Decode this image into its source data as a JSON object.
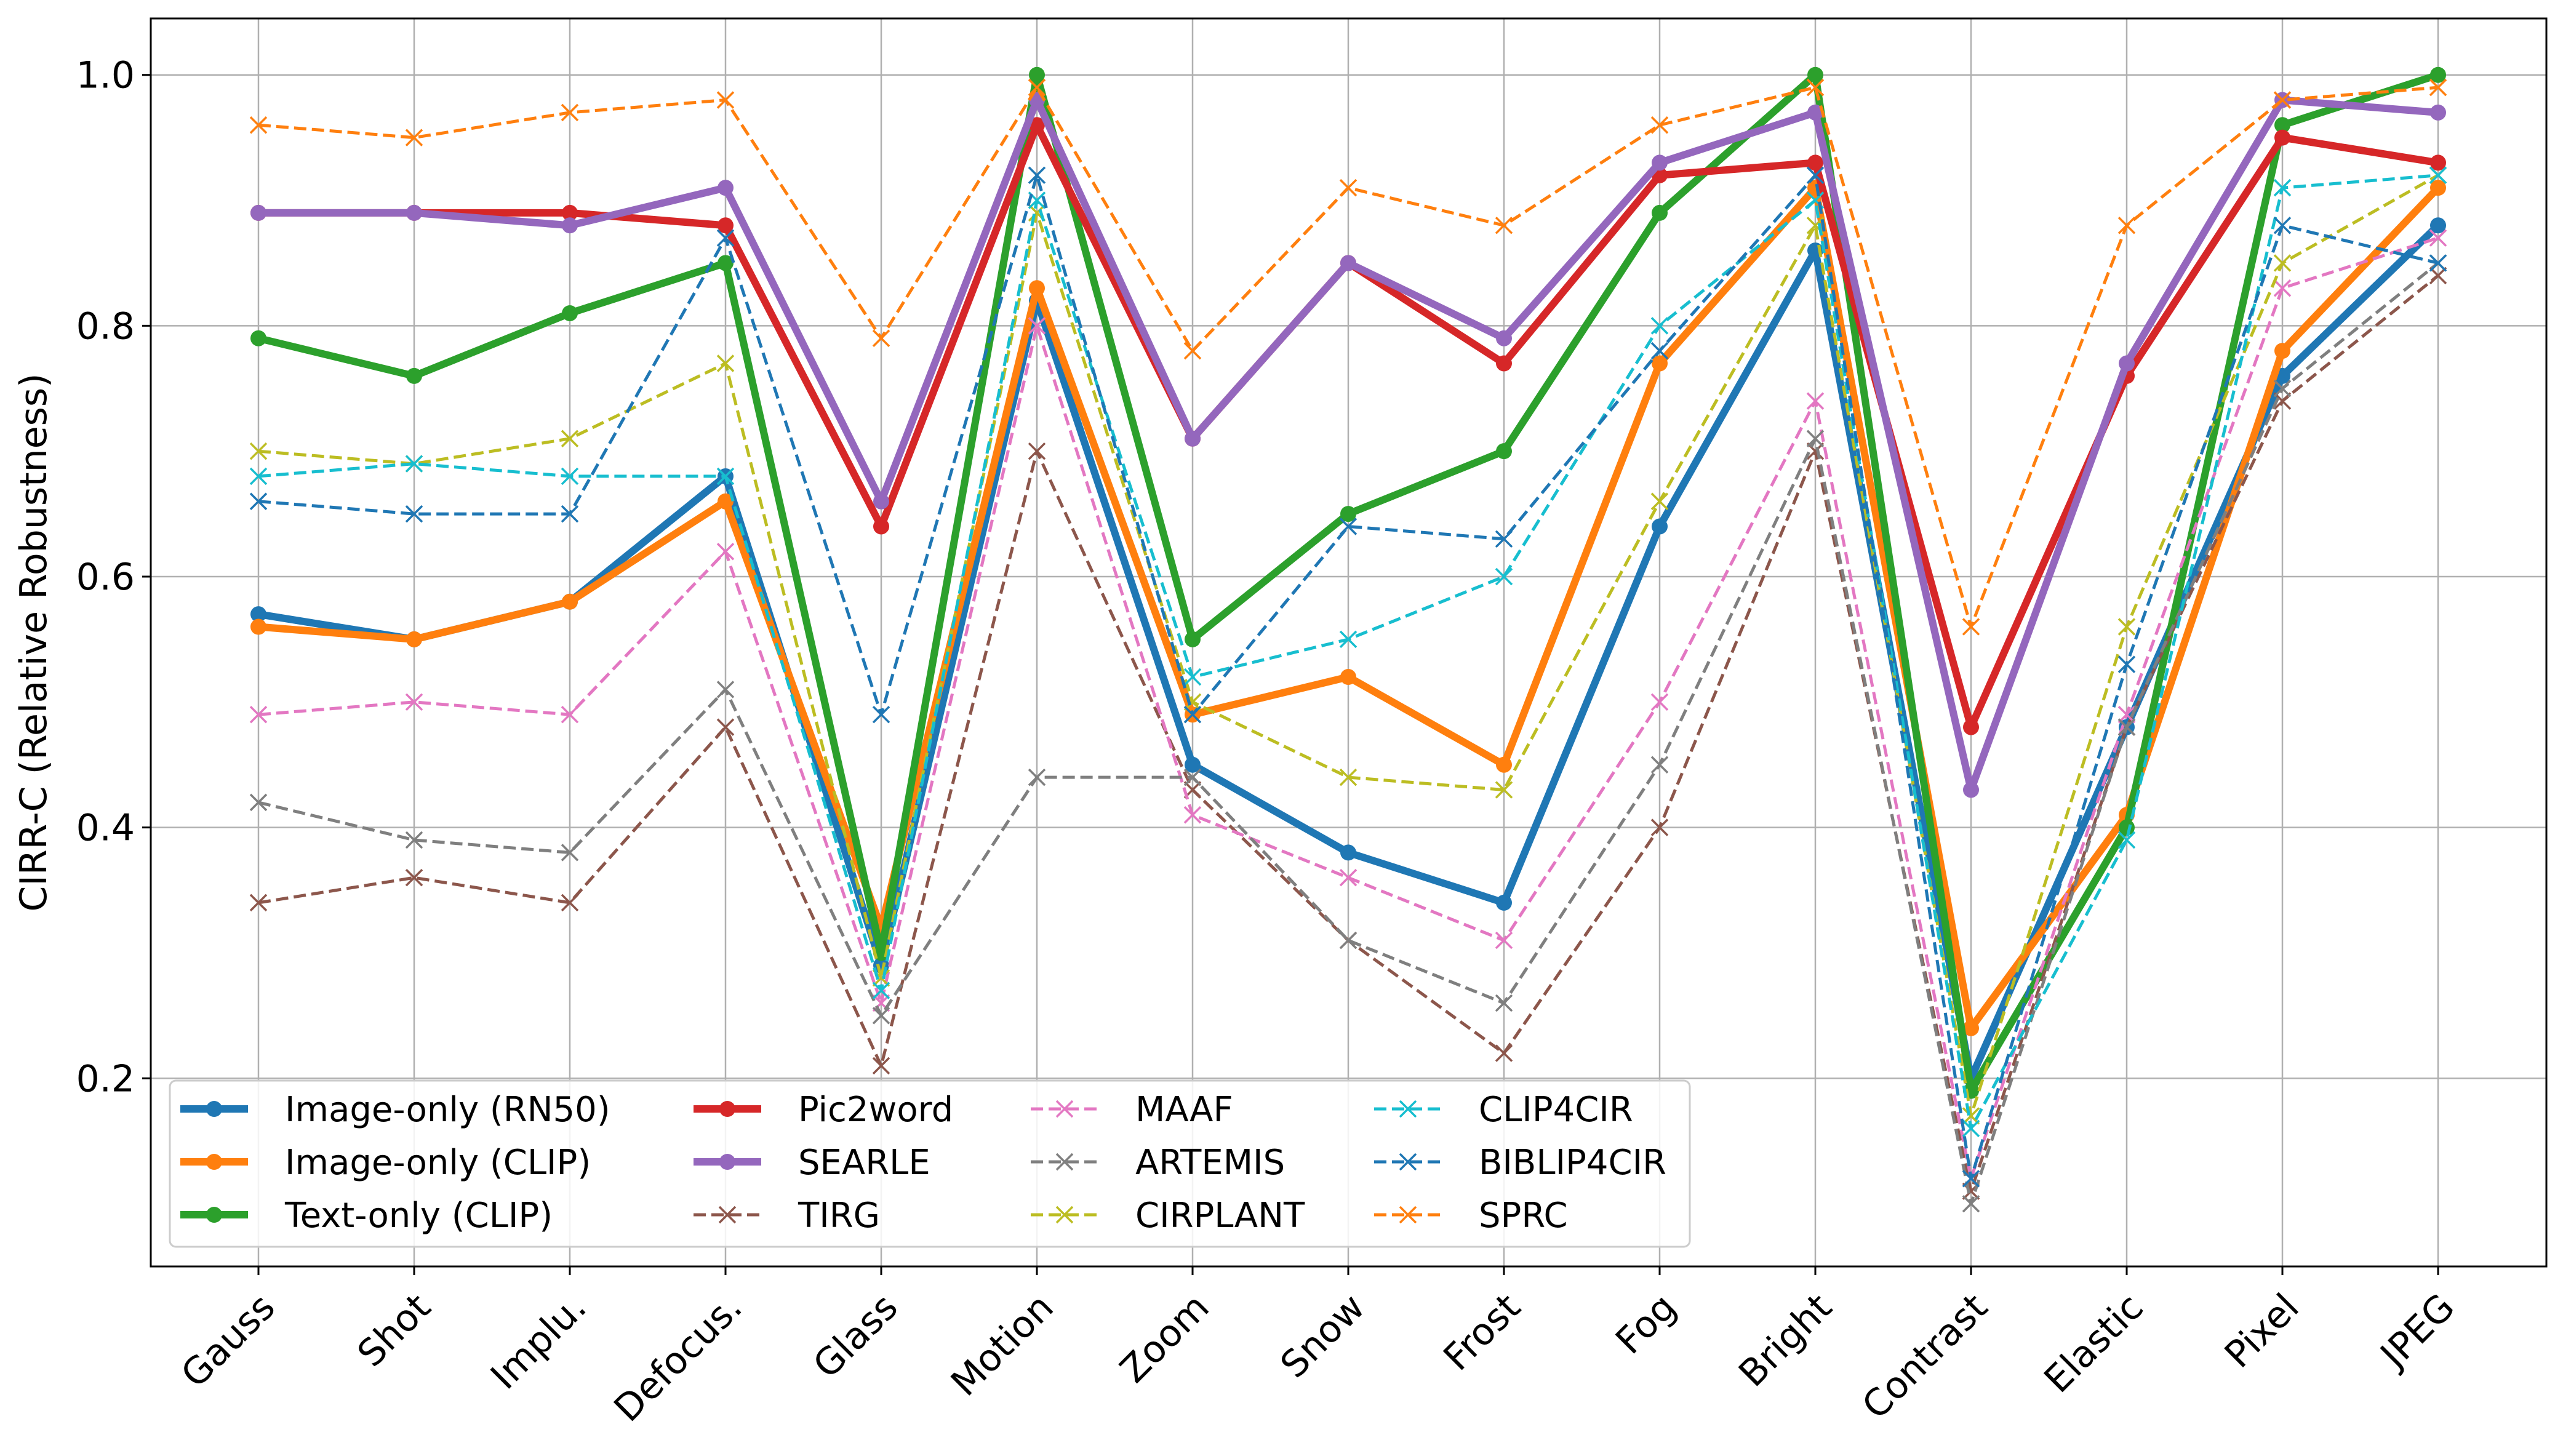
{
  "chart_data": {
    "type": "line",
    "title": "",
    "xlabel": "",
    "ylabel": "CIRR-C (Relative Robustness)",
    "ylim": [
      0.05,
      1.045
    ],
    "yticks": [
      0.2,
      0.4,
      0.6,
      0.8,
      1.0
    ],
    "ytick_labels": [
      "0.2",
      "0.4",
      "0.6",
      "0.8",
      "1.0"
    ],
    "grid": true,
    "legend_position": "lower-left",
    "categories": [
      "Gauss",
      "Shot",
      "Implu.",
      "Defocus.",
      "Glass",
      "Motion",
      "Zoom",
      "Snow",
      "Frost",
      "Fog",
      "Bright",
      "Contrast",
      "Elastic",
      "Pixel",
      "JPEG"
    ],
    "series": [
      {
        "name": "Image-only (RN50)",
        "color": "#1f77b4",
        "style": "solid",
        "marker": "circle",
        "values": [
          0.57,
          0.55,
          0.58,
          0.68,
          0.29,
          0.82,
          0.45,
          0.38,
          0.34,
          0.64,
          0.86,
          0.2,
          0.48,
          0.76,
          0.88
        ]
      },
      {
        "name": "Image-only (CLIP)",
        "color": "#ff7f0e",
        "style": "solid",
        "marker": "circle",
        "values": [
          0.56,
          0.55,
          0.58,
          0.66,
          0.32,
          0.83,
          0.49,
          0.52,
          0.45,
          0.77,
          0.91,
          0.24,
          0.41,
          0.78,
          0.91
        ]
      },
      {
        "name": "Text-only (CLIP)",
        "color": "#2ca02c",
        "style": "solid",
        "marker": "circle",
        "values": [
          0.79,
          0.76,
          0.81,
          0.85,
          0.3,
          1.0,
          0.55,
          0.65,
          0.7,
          0.89,
          1.0,
          0.19,
          0.4,
          0.96,
          1.0
        ]
      },
      {
        "name": "Pic2word",
        "color": "#d62728",
        "style": "solid",
        "marker": "circle",
        "values": [
          0.89,
          0.89,
          0.89,
          0.88,
          0.64,
          0.96,
          0.71,
          0.85,
          0.77,
          0.92,
          0.93,
          0.48,
          0.76,
          0.95,
          0.93
        ]
      },
      {
        "name": "SEARLE",
        "color": "#9467bd",
        "style": "solid",
        "marker": "circle",
        "values": [
          0.89,
          0.89,
          0.88,
          0.91,
          0.66,
          0.98,
          0.71,
          0.85,
          0.79,
          0.93,
          0.97,
          0.43,
          0.77,
          0.98,
          0.97
        ]
      },
      {
        "name": "TIRG",
        "color": "#8c564b",
        "style": "dashed",
        "marker": "x",
        "values": [
          0.34,
          0.36,
          0.34,
          0.48,
          0.21,
          0.7,
          0.43,
          0.31,
          0.22,
          0.4,
          0.7,
          0.11,
          0.48,
          0.74,
          0.84
        ]
      },
      {
        "name": "MAAF",
        "color": "#e377c2",
        "style": "dashed",
        "marker": "x",
        "values": [
          0.49,
          0.5,
          0.49,
          0.62,
          0.26,
          0.8,
          0.41,
          0.36,
          0.31,
          0.5,
          0.74,
          0.12,
          0.49,
          0.83,
          0.87
        ]
      },
      {
        "name": "ARTEMIS",
        "color": "#7f7f7f",
        "style": "dashed",
        "marker": "x",
        "values": [
          0.42,
          0.39,
          0.38,
          0.51,
          0.25,
          0.44,
          0.44,
          0.31,
          0.26,
          0.45,
          0.71,
          0.1,
          0.48,
          0.75,
          0.85
        ]
      },
      {
        "name": "CIRPLANT",
        "color": "#bcbd22",
        "style": "dashed",
        "marker": "x",
        "values": [
          0.7,
          0.69,
          0.71,
          0.77,
          0.28,
          0.89,
          0.5,
          0.44,
          0.43,
          0.66,
          0.88,
          0.17,
          0.56,
          0.85,
          0.92
        ]
      },
      {
        "name": "CLIP4CIR",
        "color": "#17becf",
        "style": "dashed",
        "marker": "x",
        "values": [
          0.68,
          0.69,
          0.68,
          0.68,
          0.27,
          0.9,
          0.52,
          0.55,
          0.6,
          0.8,
          0.9,
          0.16,
          0.39,
          0.91,
          0.92
        ]
      },
      {
        "name": "BIBLIP4CIR",
        "color": "#1f77b4",
        "style": "dashed",
        "marker": "x",
        "values": [
          0.66,
          0.65,
          0.65,
          0.87,
          0.49,
          0.92,
          0.49,
          0.64,
          0.63,
          0.78,
          0.92,
          0.12,
          0.53,
          0.88,
          0.85
        ]
      },
      {
        "name": "SPRC",
        "color": "#ff7f0e",
        "style": "dashed",
        "marker": "x",
        "values": [
          0.96,
          0.95,
          0.97,
          0.98,
          0.79,
          0.99,
          0.78,
          0.91,
          0.88,
          0.96,
          0.99,
          0.56,
          0.88,
          0.98,
          0.99
        ]
      }
    ]
  }
}
